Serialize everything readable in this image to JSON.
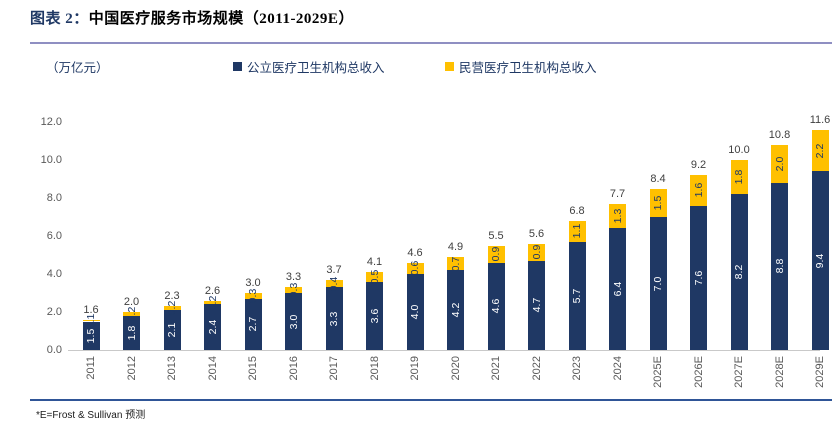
{
  "header": {
    "figure_label": "图表 2：",
    "title": "中国医疗服务市场规模（2011-2029E）"
  },
  "unit_label": "（万亿元）",
  "legend": [
    {
      "label": "公立医疗卫生机构总收入",
      "color": "#1F3864"
    },
    {
      "label": "民营医疗卫生机构总收入",
      "color": "#FFC000"
    }
  ],
  "footnote": "*E=Frost & Sullivan 预测",
  "chart_data": {
    "type": "bar",
    "stacked": true,
    "title": "中国医疗服务市场规模（2011-2029E）",
    "ylabel": "（万亿元）",
    "xlabel": "",
    "grid": false,
    "legend_position": "top",
    "ylim": [
      0,
      12
    ],
    "yticks": [
      "0.0",
      "2.0",
      "4.0",
      "6.0",
      "8.0",
      "10.0",
      "12.0"
    ],
    "categories": [
      "2011",
      "2012",
      "2013",
      "2014",
      "2015",
      "2016",
      "2017",
      "2018",
      "2019",
      "2020",
      "2021",
      "2022",
      "2023",
      "2024",
      "2025E",
      "2026E",
      "2027E",
      "2028E",
      "2029E"
    ],
    "series": [
      {
        "name": "公立医疗卫生机构总收入",
        "color": "#1F3864",
        "values": [
          1.5,
          1.8,
          2.1,
          2.4,
          2.7,
          3.0,
          3.3,
          3.6,
          4.0,
          4.2,
          4.6,
          4.7,
          5.7,
          6.4,
          7.0,
          7.6,
          8.2,
          8.8,
          9.4
        ]
      },
      {
        "name": "民营医疗卫生机构总收入",
        "color": "#FFC000",
        "values": [
          0.1,
          0.2,
          0.2,
          0.2,
          0.3,
          0.3,
          0.4,
          0.5,
          0.6,
          0.7,
          0.9,
          0.9,
          1.1,
          1.3,
          1.5,
          1.6,
          1.8,
          2.0,
          2.2
        ]
      }
    ],
    "totals": [
      1.6,
      2.0,
      2.3,
      2.6,
      3.0,
      3.3,
      3.7,
      4.1,
      4.6,
      4.9,
      5.5,
      5.6,
      6.8,
      7.7,
      8.4,
      9.2,
      10.0,
      10.8,
      11.6
    ]
  }
}
